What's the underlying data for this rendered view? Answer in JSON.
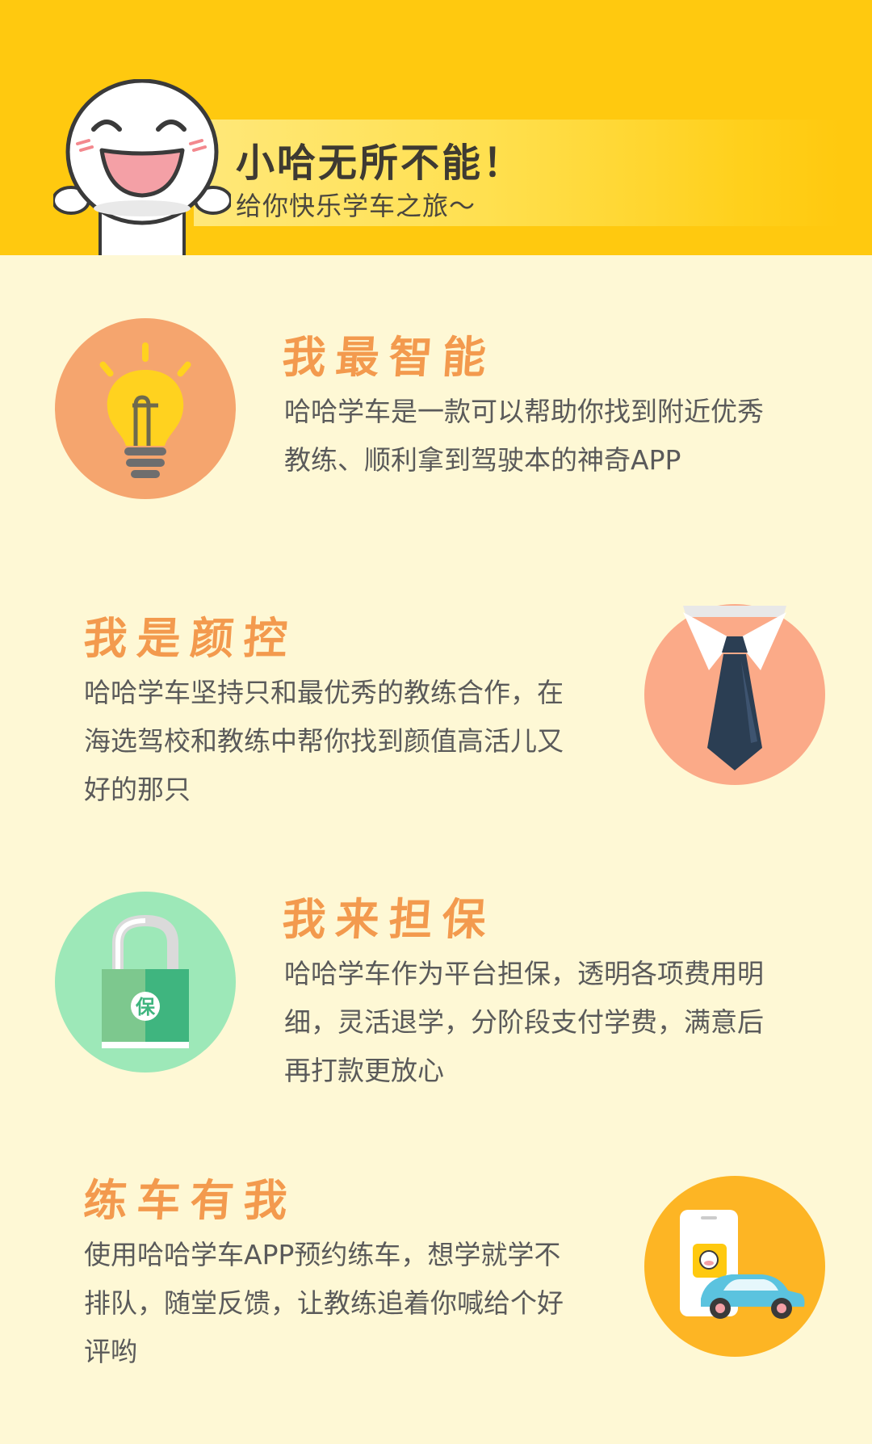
{
  "header": {
    "title": "小哈无所不能！",
    "subtitle": "给你快乐学车之旅～"
  },
  "features": [
    {
      "title": "我最智能",
      "desc_lines": [
        "哈哈学车是一款可以帮助你找到附近优秀",
        "教练、顺利拿到驾驶本的神奇APP"
      ],
      "icon": "lightbulb-icon",
      "icon_bg": "#F5A56E"
    },
    {
      "title": "我是颜控",
      "desc_lines": [
        "哈哈学车坚持只和最优秀的教练合作，在",
        "海选驾校和教练中帮你找到颜值高活儿又",
        "好的那只"
      ],
      "icon": "necktie-icon",
      "icon_bg": "#FBAA88"
    },
    {
      "title": "我来担保",
      "desc_lines": [
        "哈哈学车作为平台担保，透明各项费用明",
        "细，灵活退学，分阶段支付学费，满意后",
        "再打款更放心"
      ],
      "icon": "padlock-icon",
      "icon_bg": "#9DE8B8",
      "icon_label": "保"
    },
    {
      "title": "练车有我",
      "desc_lines": [
        "使用哈哈学车APP预约练车，想学就学不",
        "排队，随堂反馈，让教练追着你喊给个好",
        "评哟"
      ],
      "icon": "phone-car-icon",
      "icon_bg": "#FDB524"
    }
  ],
  "colors": {
    "header_bg": "#FFC90F",
    "page_bg": "#FEF8D5",
    "title_orange": "#F39A4E"
  }
}
